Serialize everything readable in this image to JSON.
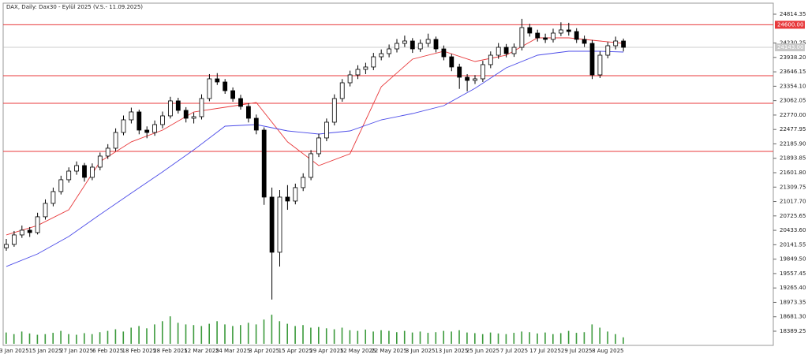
{
  "chart_data": {
    "type": "candlestick",
    "title": "DAX, Daily: Dax30 - Eylül 2025 (V.S.- 11.09.2025)",
    "categories": [
      null,
      "3 Jan 2025",
      null,
      null,
      null,
      "15 Jan 2025",
      null,
      null,
      null,
      "27 Jan 2025",
      null,
      null,
      null,
      "6 Feb 2025",
      null,
      null,
      null,
      "18 Feb 2025",
      null,
      null,
      null,
      "28 Feb 2025",
      null,
      null,
      null,
      "12 Mar 2025",
      null,
      null,
      null,
      "24 Mar 2025",
      null,
      null,
      null,
      "3 Apr 2025",
      null,
      null,
      null,
      "15 Apr 2025",
      null,
      null,
      null,
      "29 Apr 2025",
      null,
      null,
      null,
      "12 May 2025",
      null,
      null,
      null,
      "22 May 2025",
      null,
      null,
      null,
      "3 Jun 2025",
      null,
      null,
      null,
      "13 Jun 2025",
      null,
      null,
      null,
      "25 Jun 2025",
      null,
      null,
      null,
      "7 Jul 2025",
      null,
      null,
      null,
      "17 Jul 2025",
      null,
      null,
      null,
      "29 Jul 2025",
      null,
      null,
      null,
      "8 Aug 2025",
      null,
      null
    ],
    "open": [
      20080,
      20148,
      20340,
      20436,
      20388,
      20708,
      20980,
      21219,
      21459,
      21634,
      21746,
      21507,
      21714,
      21938,
      22098,
      22417,
      22673,
      22833,
      22465,
      22417,
      22577,
      22753,
      23057,
      22865,
      22705,
      22737,
      23105,
      23504,
      23440,
      23264,
      23105,
      22945,
      22705,
      22465,
      21107,
      19989,
      21107,
      21027,
      21299,
      21507,
      21986,
      22306,
      22625,
      23105,
      23424,
      23584,
      23696,
      23744,
      23951,
      24015,
      24111,
      24223,
      24271,
      24111,
      24223,
      24303,
      24111,
      23951,
      23744,
      23536,
      23472,
      23504,
      23792,
      23983,
      24143,
      24015,
      24143,
      24543,
      24431,
      24335,
      24303,
      24431,
      24495,
      24463,
      24303,
      24223,
      23584,
      23983,
      24175,
      24271
    ],
    "high": [
      20260,
      20420,
      20530,
      20500,
      20790,
      21060,
      21300,
      21540,
      21710,
      21830,
      21800,
      21790,
      22010,
      22180,
      22500,
      22760,
      22920,
      22880,
      22540,
      22660,
      22840,
      23140,
      23120,
      22930,
      22820,
      23190,
      23600,
      23620,
      23500,
      23330,
      23180,
      23010,
      22780,
      22520,
      21300,
      21250,
      21350,
      21380,
      21590,
      22060,
      22390,
      22700,
      23190,
      23500,
      23670,
      23780,
      23830,
      24030,
      24100,
      24200,
      24310,
      24380,
      24330,
      24300,
      24420,
      24360,
      24180,
      24010,
      23810,
      23600,
      23580,
      23870,
      24060,
      24230,
      24210,
      24220,
      24720,
      24620,
      24500,
      24420,
      24520,
      24650,
      24640,
      24530,
      24380,
      24290,
      24060,
      24250,
      24360,
      24320
    ],
    "low": [
      20020,
      20100,
      20280,
      20300,
      20350,
      20650,
      20920,
      21160,
      21400,
      21560,
      21420,
      21450,
      21650,
      21880,
      22040,
      22360,
      22600,
      22380,
      22300,
      22350,
      22500,
      22700,
      22800,
      22620,
      22600,
      22680,
      23050,
      23380,
      23200,
      23040,
      22880,
      22620,
      22380,
      20950,
      19030,
      19700,
      20850,
      20960,
      21230,
      21450,
      21920,
      22240,
      22560,
      23040,
      23350,
      23500,
      23600,
      23680,
      23880,
      23940,
      24040,
      24150,
      24030,
      24050,
      24150,
      24040,
      23880,
      23660,
      23300,
      23250,
      23400,
      23440,
      23720,
      23910,
      23940,
      23950,
      24080,
      24360,
      24260,
      24230,
      24240,
      24370,
      24380,
      24230,
      24150,
      23500,
      23520,
      23920,
      24100,
      24060
    ],
    "close": [
      20148,
      20340,
      20436,
      20388,
      20708,
      20980,
      21219,
      21459,
      21634,
      21746,
      21507,
      21714,
      21938,
      22098,
      22417,
      22673,
      22833,
      22465,
      22417,
      22577,
      22753,
      23057,
      22865,
      22705,
      22737,
      23105,
      23504,
      23440,
      23264,
      23105,
      22945,
      22705,
      22465,
      21107,
      19989,
      21107,
      21027,
      21299,
      21507,
      21986,
      22306,
      22625,
      23105,
      23424,
      23584,
      23696,
      23744,
      23951,
      24015,
      24111,
      24223,
      24271,
      24111,
      24223,
      24303,
      24111,
      23951,
      23744,
      23536,
      23472,
      23504,
      23792,
      23983,
      24143,
      24015,
      24143,
      24543,
      24431,
      24335,
      24303,
      24431,
      24495,
      24463,
      24303,
      24223,
      23584,
      23983,
      24175,
      24271,
      24143
    ],
    "volume": [
      35,
      30,
      38,
      32,
      28,
      30,
      34,
      40,
      30,
      28,
      33,
      30,
      36,
      40,
      45,
      38,
      50,
      55,
      48,
      60,
      70,
      85,
      65,
      60,
      58,
      55,
      62,
      70,
      60,
      55,
      58,
      65,
      60,
      75,
      90,
      70,
      62,
      55,
      58,
      50,
      52,
      48,
      45,
      50,
      42,
      40,
      44,
      38,
      42,
      40,
      36,
      40,
      35,
      38,
      34,
      36,
      40,
      38,
      42,
      35,
      33,
      30,
      35,
      32,
      30,
      34,
      38,
      36,
      32,
      35,
      30,
      33,
      40,
      34,
      36,
      60,
      50,
      38,
      30,
      20
    ],
    "volume_lim": [
      0,
      100
    ],
    "volume_color": "#3c9a3c",
    "moving_averages": [
      {
        "color": "#e8393b",
        "x": [
          0,
          4,
          8,
          12,
          16,
          20,
          24,
          28,
          32,
          36,
          40,
          44,
          48,
          52,
          56,
          60,
          64,
          68,
          72,
          76,
          79
        ],
        "values": [
          20340,
          20532,
          20851,
          21826,
          22226,
          22465,
          22833,
          22929,
          23025,
          22226,
          21746,
          21986,
          23344,
          23904,
          24063,
          23856,
          23983,
          24335,
          24335,
          24271,
          24223
        ]
      },
      {
        "color": "#4b4be8",
        "x": [
          0,
          4,
          8,
          12,
          16,
          20,
          24,
          28,
          32,
          36,
          40,
          44,
          48,
          52,
          56,
          60,
          64,
          68,
          72,
          76,
          79
        ],
        "values": [
          19701,
          19956,
          20308,
          20755,
          21187,
          21618,
          22066,
          22545,
          22577,
          22449,
          22385,
          22449,
          22673,
          22801,
          22961,
          23312,
          23728,
          23983,
          24063,
          24063,
          24047
        ]
      }
    ],
    "levels": [
      {
        "value": 24600,
        "label": "24600.00"
      },
      23567,
      23008,
      22034
    ],
    "level_color": "#e8393b",
    "current_price": {
      "value": 24143,
      "label": "24143.00"
    },
    "ylim": [
      18069.5,
      25022.1
    ],
    "yticks": [
      {
        "value": 24814.35,
        "label": "24814.35"
      },
      {
        "value": 24230.25,
        "label": "24230.25"
      },
      {
        "value": 23938.2,
        "label": "23938.20"
      },
      {
        "value": 23646.15,
        "label": "23646.15"
      },
      {
        "value": 23354.1,
        "label": "23354.10"
      },
      {
        "value": 23062.05,
        "label": "23062.05"
      },
      {
        "value": 22770,
        "label": "22770.00"
      },
      {
        "value": 22477.95,
        "label": "22477.95"
      },
      {
        "value": 22185.9,
        "label": "22185.90"
      },
      {
        "value": 21893.85,
        "label": "21893.85"
      },
      {
        "value": 21601.8,
        "label": "21601.80"
      },
      {
        "value": 21309.75,
        "label": "21309.75"
      },
      {
        "value": 21017.7,
        "label": "21017.70"
      },
      {
        "value": 20725.65,
        "label": "20725.65"
      },
      {
        "value": 20433.6,
        "label": "20433.60"
      },
      {
        "value": 20141.55,
        "label": "20141.55"
      },
      {
        "value": 19849.5,
        "label": "19849.50"
      },
      {
        "value": 19557.45,
        "label": "19557.45"
      },
      {
        "value": 19265.4,
        "label": "19265.40"
      },
      {
        "value": 18973.35,
        "label": "18973.35"
      },
      {
        "value": 18681.3,
        "label": "18681.30"
      },
      {
        "value": 18389.25,
        "label": "18389.25"
      }
    ]
  }
}
